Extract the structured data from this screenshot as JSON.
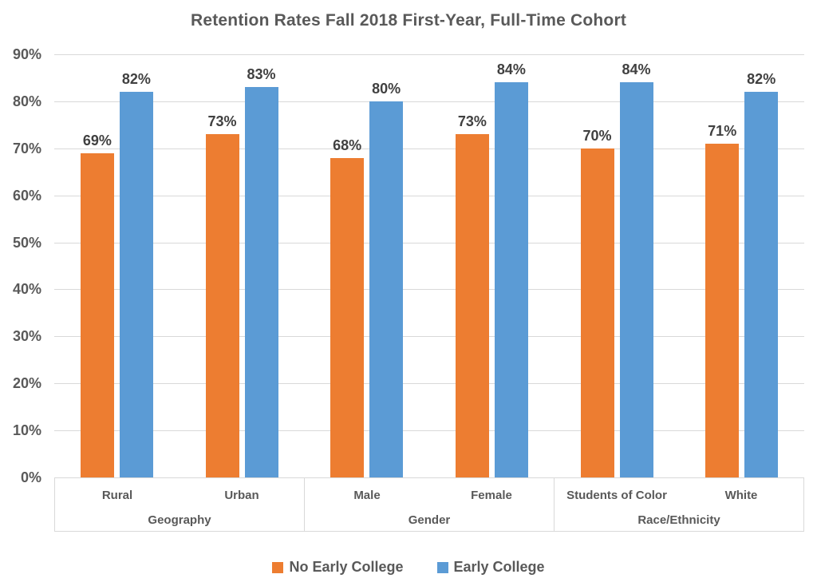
{
  "chart_data": {
    "type": "bar",
    "title": "Retention Rates Fall 2018 First-Year, Full-Time Cohort",
    "categories": [
      "Rural",
      "Urban",
      "Male",
      "Female",
      "Students of Color",
      "White"
    ],
    "groups": [
      {
        "label": "Geography",
        "categories": [
          "Rural",
          "Urban"
        ]
      },
      {
        "label": "Gender",
        "categories": [
          "Male",
          "Female"
        ]
      },
      {
        "label": "Race/Ethnicity",
        "categories": [
          "Students of Color",
          "White"
        ]
      }
    ],
    "series": [
      {
        "name": "No Early College",
        "color": "#ED7D31",
        "values": [
          69,
          73,
          68,
          73,
          70,
          71
        ]
      },
      {
        "name": "Early College",
        "color": "#5B9BD5",
        "values": [
          82,
          83,
          80,
          84,
          84,
          82
        ]
      }
    ],
    "data_label_suffix": "%",
    "ylabel": "",
    "xlabel": "",
    "ylim": [
      0,
      90
    ],
    "ytick_step": 10,
    "ytick_labels": [
      "0%",
      "10%",
      "20%",
      "30%",
      "40%",
      "50%",
      "60%",
      "70%",
      "80%",
      "90%"
    ],
    "grid": true,
    "legend_position": "bottom"
  },
  "colors": {
    "title_text": "#595959",
    "axis_text": "#595959",
    "data_label_text": "#404040",
    "gridline": "#D9D9D9",
    "background": "#FFFFFF"
  }
}
